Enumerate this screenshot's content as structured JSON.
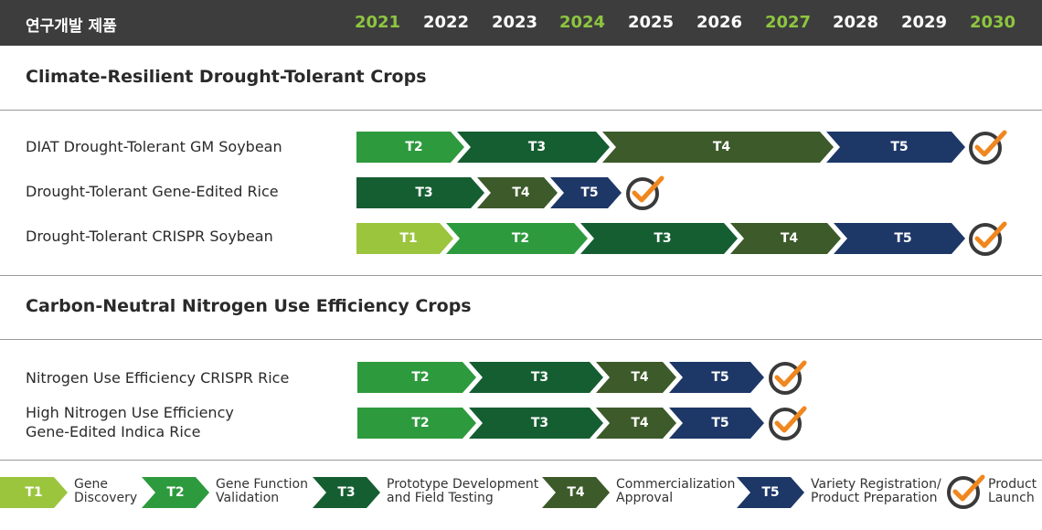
{
  "header": {
    "title": "연구개발 제품",
    "years": [
      {
        "label": "2021",
        "highlight": true
      },
      {
        "label": "2022",
        "highlight": false
      },
      {
        "label": "2023",
        "highlight": false
      },
      {
        "label": "2024",
        "highlight": true
      },
      {
        "label": "2025",
        "highlight": false
      },
      {
        "label": "2026",
        "highlight": false
      },
      {
        "label": "2027",
        "highlight": true
      },
      {
        "label": "2028",
        "highlight": false
      },
      {
        "label": "2029",
        "highlight": false
      },
      {
        "label": "2030",
        "highlight": true
      }
    ]
  },
  "sections": [
    {
      "title": "Climate-Resilient Drought-Tolerant Crops",
      "rows": [
        {
          "label": "DIAT Drought-Tolerant GM Soybean",
          "stages": [
            "T2",
            "T3",
            "T4",
            "T5"
          ]
        },
        {
          "label": "Drought-Tolerant Gene-Edited Rice",
          "stages": [
            "T3",
            "T4",
            "T5"
          ]
        },
        {
          "label": "Drought-Tolerant CRISPR Soybean",
          "stages": [
            "T1",
            "T2",
            "T3",
            "T4",
            "T5"
          ]
        }
      ]
    },
    {
      "title": "Carbon-Neutral Nitrogen Use Efficiency Crops",
      "rows": [
        {
          "label": "Nitrogen Use Efficiency CRISPR Rice",
          "stages": [
            "T2",
            "T3",
            "T4",
            "T5"
          ]
        },
        {
          "label_line1": "High Nitrogen Use Efficiency",
          "label_line2": "Gene-Edited Indica Rice",
          "stages": [
            "T2",
            "T3",
            "T4",
            "T5"
          ]
        }
      ]
    }
  ],
  "legend": [
    {
      "code": "T1",
      "line1": "Gene",
      "line2": "Discovery",
      "color": "#9bc53d"
    },
    {
      "code": "T2",
      "line1": "Gene Function",
      "line2": "Validation",
      "color": "#2e9a3e"
    },
    {
      "code": "T3",
      "line1": "Prototype Development",
      "line2": "and Field Testing",
      "color": "#155e32"
    },
    {
      "code": "T4",
      "line1": "Commercialization",
      "line2": "Approval",
      "color": "#3d5a2a"
    },
    {
      "code": "T5",
      "line1": "Variety Registration/",
      "line2": "Product Preparation",
      "color": "#1d3767"
    },
    {
      "code": "launch",
      "line1": "Product",
      "line2": "Launch"
    }
  ],
  "colors": {
    "header_bg": "#3d3d3d",
    "year_highlight": "#8dc63f",
    "check_circle": "#3a3a3a",
    "check_mark": "#f0871e"
  }
}
